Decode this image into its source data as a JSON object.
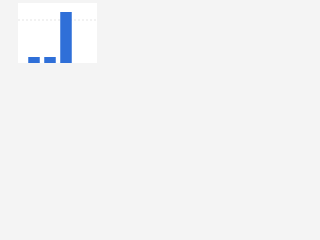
{
  "chart_data": {
    "type": "bar",
    "categories": [
      null,
      null,
      null
    ],
    "values": [
      10,
      10,
      85
    ],
    "color": "#2f6fd8",
    "ylim": [
      0,
      100
    ]
  }
}
